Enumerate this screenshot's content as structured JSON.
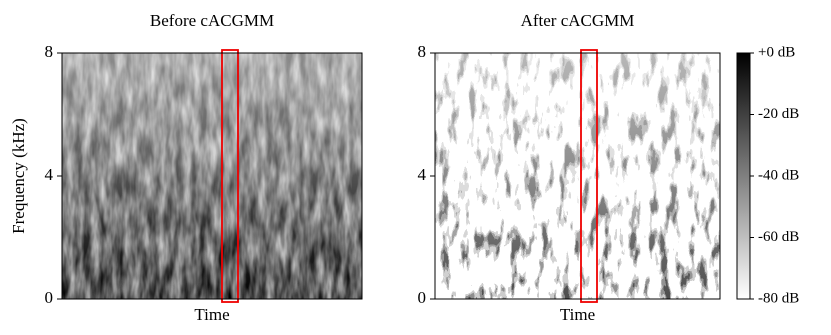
{
  "chart_data": [
    {
      "type": "spectrogram",
      "title": "Before cACGMM",
      "xlabel": "Time",
      "ylabel": "Frequency (kHz)",
      "ylim": [
        0,
        8
      ],
      "yticks": [
        0,
        4,
        8
      ]
    },
    {
      "type": "spectrogram",
      "title": "After cACGMM",
      "xlabel": "Time",
      "ylim": [
        0,
        8
      ],
      "yticks": [
        0,
        4,
        8
      ],
      "colorbar": {
        "clim": [
          -80,
          0
        ],
        "colors": [
          "#ffffff",
          "#000000"
        ],
        "ticks": [
          {
            "value": 0,
            "label": "+0 dB"
          },
          {
            "value": -20,
            "label": "-20 dB"
          },
          {
            "value": -40,
            "label": "-40 dB"
          },
          {
            "value": -60,
            "label": "-60 dB"
          },
          {
            "value": -80,
            "label": "-80 dB"
          }
        ]
      }
    }
  ]
}
